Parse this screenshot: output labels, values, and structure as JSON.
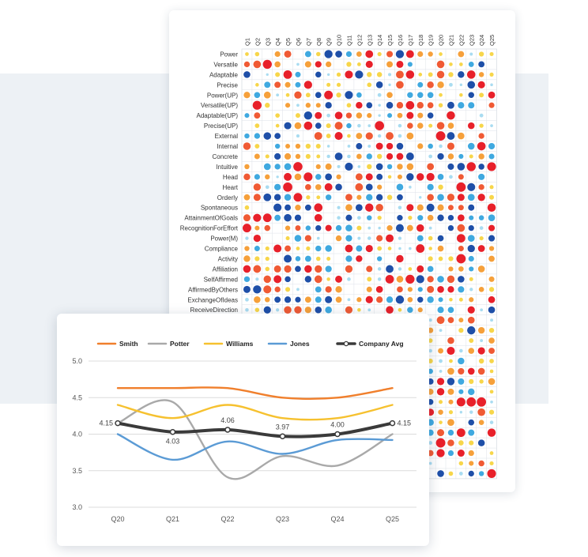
{
  "chart_data": [
    {
      "type": "heatmap",
      "columns": [
        "Q1",
        "Q2",
        "Q3",
        "Q4",
        "Q5",
        "Q6",
        "Q7",
        "Q8",
        "Q9",
        "Q10",
        "Q11",
        "Q12",
        "Q13",
        "Q14",
        "Q15",
        "Q16",
        "Q17",
        "Q18",
        "Q19",
        "Q20",
        "Q21",
        "Q22",
        "Q23",
        "Q24",
        "Q25"
      ],
      "rows": [
        "Power",
        "Versatile",
        "Adaptable",
        "Precise",
        "Power(UP)",
        "Versatile(UP)",
        "Adaptable(UP)",
        "Precise(UP)",
        "External",
        "Internal",
        "Concrete",
        "Intuitive",
        "Head",
        "Heart",
        "Orderly",
        "Spontaneous",
        "AttainmentOfGoals",
        "RecognitionForEffort",
        "Power(M)",
        "Compliance",
        "Activity",
        "Affiliation",
        "SelfAffirmed",
        "AffirmedByOthers",
        "ExchangeOfIdeas",
        "ReceiveDirection"
      ],
      "color_scale": [
        "#1e4fa8",
        "#3fa9e0",
        "#a9dcf1",
        "#f7d64a",
        "#f6a03a",
        "#f05a34",
        "#e8202a"
      ],
      "grid": true
    },
    {
      "type": "line",
      "x": [
        "Q20",
        "Q21",
        "Q22",
        "Q23",
        "Q24",
        "Q25"
      ],
      "series": [
        {
          "name": "Smith",
          "color": "#f07f2c",
          "values": [
            4.63,
            4.63,
            4.63,
            4.5,
            4.5,
            4.63
          ]
        },
        {
          "name": "Potter",
          "color": "#a9a9a9",
          "values": [
            4.15,
            4.44,
            3.41,
            3.7,
            3.57,
            4.0
          ]
        },
        {
          "name": "Williams",
          "color": "#f6c12f",
          "values": [
            4.4,
            4.22,
            4.4,
            4.22,
            4.22,
            4.4
          ]
        },
        {
          "name": "Jones",
          "color": "#5b9bd5",
          "values": [
            4.0,
            3.65,
            3.9,
            3.73,
            3.92,
            3.92
          ]
        },
        {
          "name": "Company Avg",
          "color": "#3a3a3a",
          "values": [
            4.15,
            4.03,
            4.06,
            3.97,
            4.0,
            4.15
          ]
        }
      ],
      "data_labels": [
        "4.15",
        "4.03",
        "4.06",
        "3.97",
        "4.00",
        "4.15"
      ],
      "yticks": [
        "5.0",
        "4.5",
        "4.0",
        "3.5",
        "3.0"
      ],
      "ylim": [
        3.0,
        5.0
      ],
      "legend": "top",
      "grid": true
    }
  ]
}
